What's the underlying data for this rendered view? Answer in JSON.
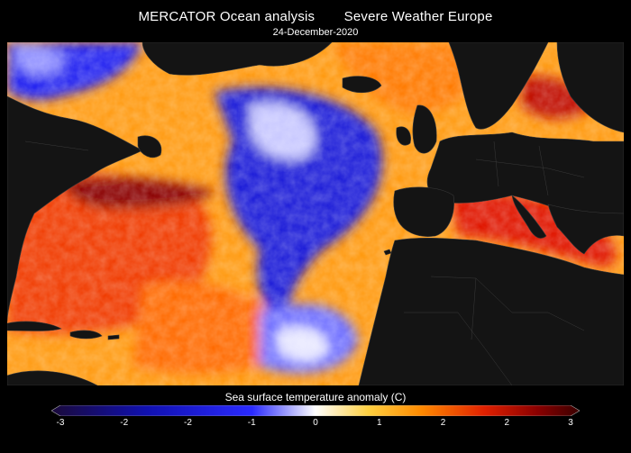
{
  "header": {
    "title_left": "MERCATOR Ocean analysis",
    "title_right": "Severe Weather Europe",
    "date": "24-December-2020"
  },
  "colorbar": {
    "label": "Sea surface temperature anomaly (C)",
    "ticks": [
      "-3",
      "-2",
      "-2",
      "-1",
      "0",
      "1",
      "2",
      "2",
      "3"
    ],
    "range": [
      -3,
      3
    ],
    "colors": {
      "darkest_negative": "#1a0a3a",
      "deep_blue": "#1010b0",
      "blue": "#2a2aff",
      "neutral": "#ffffff",
      "yellow": "#ffd040",
      "orange": "#ff8a00",
      "red": "#e02000",
      "dark_red": "#8a0000",
      "darkest_positive": "#3a0000"
    }
  },
  "map": {
    "land_color": "#141414",
    "border_color": "#3a3a3a"
  }
}
